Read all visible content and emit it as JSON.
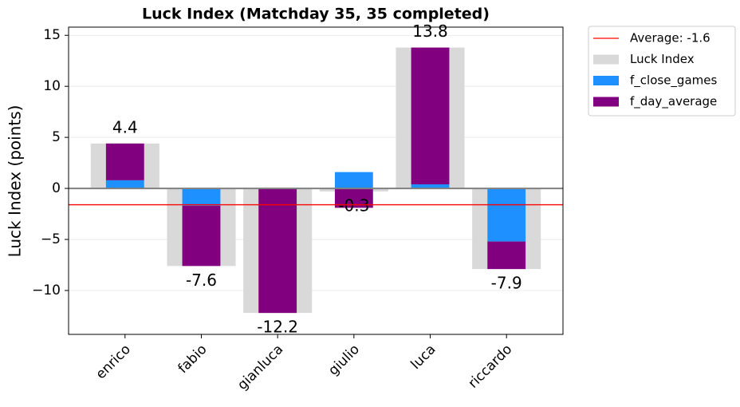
{
  "chart_data": {
    "type": "bar",
    "title": "Luck Index (Matchday 35, 35 completed)",
    "y_label": "Luck Index (points)",
    "categories": [
      "enrico",
      "fabio",
      "gianluca",
      "giulio",
      "luca",
      "riccardo"
    ],
    "series": [
      {
        "name": "Luck Index",
        "color": "#d9d9d9",
        "values": [
          4.4,
          -7.6,
          -12.2,
          -0.3,
          13.8,
          -7.9
        ]
      },
      {
        "name": "f_close_games",
        "color": "#1e90ff",
        "values": [
          0.8,
          -1.7,
          0,
          1.6,
          0.4,
          -5.2
        ]
      },
      {
        "name": "f_day_average",
        "color": "#800080",
        "values": [
          3.6,
          -5.9,
          -12.2,
          -1.9,
          13.4,
          -2.7
        ]
      }
    ],
    "average": {
      "label": "Average: -1.6",
      "value": -1.6,
      "color": "#ff0000"
    },
    "ylim": [
      -14.3,
      15.8
    ],
    "yticks": [
      {
        "value": -10,
        "label": "−10"
      },
      {
        "value": -5,
        "label": "−5"
      },
      0,
      5,
      10,
      15
    ],
    "grid": true,
    "legend": "outside-right"
  }
}
